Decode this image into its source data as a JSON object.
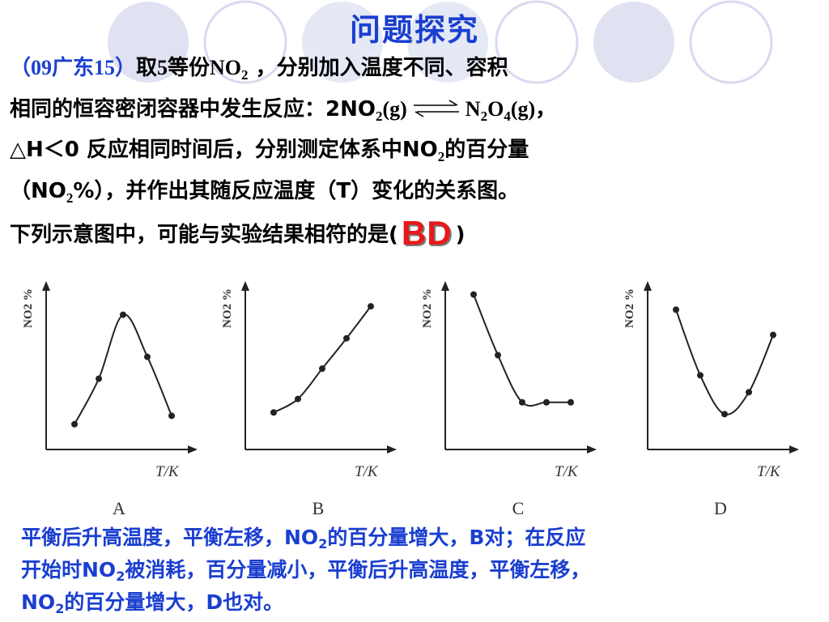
{
  "slide_title": "问题探究",
  "question": {
    "line1": {
      "source": "（09广东15）",
      "text_a": "取5等份NO",
      "sub1": "2",
      "text_b": " ，分别加入温度不同、容积"
    },
    "line2": {
      "text_a": "相同的恒容密闭容器中发生反应：2NO",
      "sub1": "2",
      "text_b": "(g)",
      "text_c": "N",
      "sub2": "2",
      "text_d": "O",
      "sub3": "4",
      "text_e": "(g)，"
    },
    "line3": {
      "text_a": "△H＜0 反应相同时间后，分别测定体系中NO",
      "sub1": "2",
      "text_b": "的百分量"
    },
    "line4": {
      "text_a": "（NO",
      "sub1": "2",
      "text_b": "%），并作出其随反应温度（T）变化的关系图。"
    },
    "line5": {
      "text_a": "下列示意图中，可能与实验结果相符的是(",
      "answer": "BD",
      "text_b": ")"
    }
  },
  "chart_data": [
    {
      "type": "line",
      "label": "A",
      "xlabel": "T/K",
      "ylabel": "NO2 %",
      "x": [
        1,
        2,
        3,
        4,
        5
      ],
      "y": [
        0.15,
        0.42,
        0.8,
        0.55,
        0.2
      ],
      "xlim": [
        0,
        6
      ],
      "ylim": [
        0,
        1
      ]
    },
    {
      "type": "line",
      "label": "B",
      "xlabel": "T/K",
      "ylabel": "NO2 %",
      "x": [
        1,
        2,
        3,
        4,
        5
      ],
      "y": [
        0.22,
        0.3,
        0.48,
        0.66,
        0.85
      ],
      "xlim": [
        0,
        6
      ],
      "ylim": [
        0,
        1
      ]
    },
    {
      "type": "line",
      "label": "C",
      "xlabel": "T/K",
      "ylabel": "NO2 %",
      "x": [
        1,
        2,
        3,
        4,
        5
      ],
      "y": [
        0.92,
        0.56,
        0.28,
        0.28,
        0.28
      ],
      "xlim": [
        0,
        6
      ],
      "ylim": [
        0,
        1
      ]
    },
    {
      "type": "line",
      "label": "D",
      "xlabel": "T/K",
      "ylabel": "NO2 %",
      "x": [
        1,
        2,
        3,
        4,
        5
      ],
      "y": [
        0.83,
        0.44,
        0.21,
        0.34,
        0.68
      ],
      "xlim": [
        0,
        6
      ],
      "ylim": [
        0,
        1
      ]
    }
  ],
  "explanation": {
    "line1": {
      "text_a": "平衡后升高温度，平衡左移，NO",
      "sub1": "2",
      "text_b": "的百分量增大，B对；在反应"
    },
    "line2": {
      "text_a": "开始时NO",
      "sub1": "2",
      "text_b": "被消耗，百分量减小，平衡后升高温度，平衡左移，"
    },
    "line3": {
      "text_a": "NO",
      "sub1": "2",
      "text_b": "的百分量增大，D也对。"
    }
  },
  "colors": {
    "title": "#1a3fd0",
    "answer": "#e8181b",
    "explanation": "#1a3fd0",
    "decor_circle": "#c6cbe8"
  }
}
